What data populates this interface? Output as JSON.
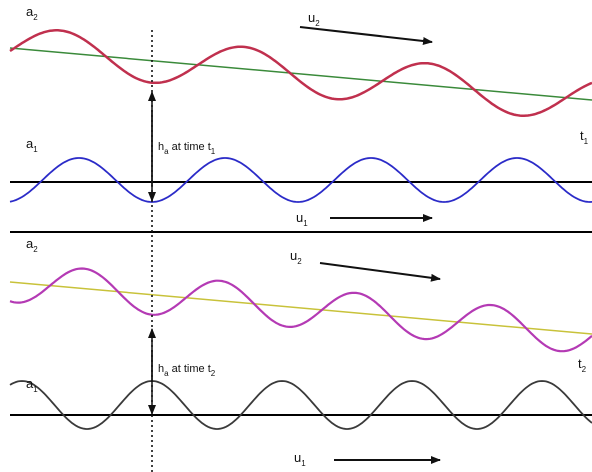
{
  "colors": {
    "wave_a2_top": "#c0304e",
    "wave_a1_top": "#2b2bc8",
    "wave_a2_bottom": "#b43ab4",
    "wave_a1_bottom": "#3a3a3a",
    "slope_top": "#3a8a3a",
    "slope_bottom": "#c8c23a",
    "baseline": "#000000",
    "arrow": "#111111"
  },
  "panels": [
    {
      "upper_wave_label": {
        "main": "a",
        "sub": "2"
      },
      "upper_velocity_label": {
        "main": "u",
        "sub": "2"
      },
      "lower_wave_label": {
        "main": "a",
        "sub": "1"
      },
      "lower_velocity_label": {
        "main": "u",
        "sub": "1"
      },
      "height_label": {
        "main": "h",
        "sub_h": "a",
        "mid": " at time t",
        "sub_t": "1"
      },
      "time_label": {
        "main": "t",
        "sub": "1"
      }
    },
    {
      "upper_wave_label": {
        "main": "a",
        "sub": "2"
      },
      "upper_velocity_label": {
        "main": "u",
        "sub": "2"
      },
      "lower_wave_label": {
        "main": "a",
        "sub": "1"
      },
      "lower_velocity_label": {
        "main": "u",
        "sub": "1"
      },
      "height_label": {
        "main": "h",
        "sub_h": "a",
        "mid": " at time t",
        "sub_t": "2"
      },
      "time_label": {
        "main": "t",
        "sub": "2"
      }
    }
  ]
}
